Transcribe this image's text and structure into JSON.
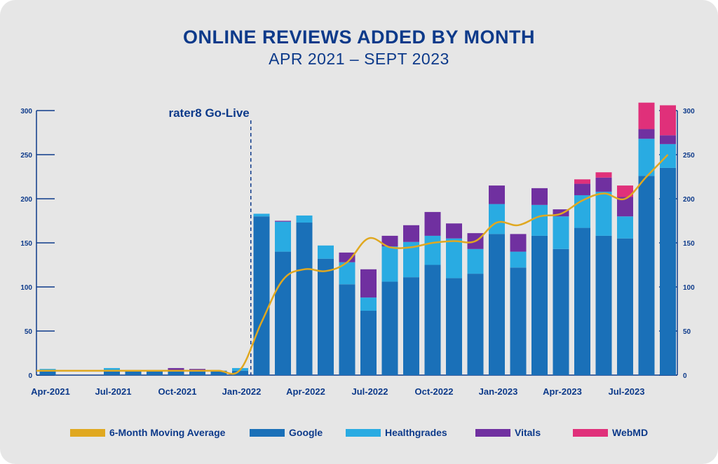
{
  "chart_data": {
    "type": "bar",
    "stacked": true,
    "title": "ONLINE REVIEWS ADDED BY MONTH",
    "subtitle": "APR 2021 – SEPT 2023",
    "annotation": "rater8 Go-Live",
    "annotation_category_index": 9.5,
    "categories": [
      "Apr-2021",
      "May-2021",
      "Jun-2021",
      "Jul-2021",
      "Aug-2021",
      "Sep-2021",
      "Oct-2021",
      "Nov-2021",
      "Dec-2021",
      "Jan-2022",
      "Feb-2022",
      "Mar-2022",
      "Apr-2022",
      "May-2022",
      "Jun-2022",
      "Jul-2022",
      "Aug-2022",
      "Sep-2022",
      "Oct-2022",
      "Nov-2022",
      "Dec-2022",
      "Jan-2023",
      "Feb-2023",
      "Mar-2023",
      "Apr-2023",
      "May-2023",
      "Jun-2023",
      "Jul-2023",
      "Aug-2023",
      "Sep-2023"
    ],
    "x_tick_labels": [
      {
        "index": 0,
        "label": "Apr-2021"
      },
      {
        "index": 3,
        "label": "Jul-2021"
      },
      {
        "index": 6,
        "label": "Oct-2021"
      },
      {
        "index": 9,
        "label": "Jan-2022"
      },
      {
        "index": 12,
        "label": "Apr-2022"
      },
      {
        "index": 15,
        "label": "Jul-2022"
      },
      {
        "index": 18,
        "label": "Oct-2022"
      },
      {
        "index": 21,
        "label": "Jan-2023"
      },
      {
        "index": 24,
        "label": "Apr-2023"
      },
      {
        "index": 27,
        "label": "Jul-2023"
      }
    ],
    "y_ticks": [
      0,
      50,
      100,
      150,
      200,
      250,
      300
    ],
    "ylim": [
      0,
      300
    ],
    "grid": false,
    "legend_position": "bottom",
    "series": [
      {
        "name": "Google",
        "color": "#1a70b8",
        "values": [
          5,
          0,
          0,
          5,
          5,
          5,
          5,
          5,
          5,
          5,
          180,
          140,
          173,
          132,
          103,
          73,
          106,
          111,
          125,
          110,
          115,
          160,
          122,
          158,
          143,
          167,
          158,
          155,
          226,
          235
        ]
      },
      {
        "name": "Healthgrades",
        "color": "#29abe2",
        "values": [
          2,
          0,
          0,
          3,
          0,
          0,
          0,
          0,
          0,
          3,
          3,
          34,
          8,
          15,
          25,
          15,
          40,
          40,
          33,
          45,
          28,
          34,
          18,
          35,
          37,
          37,
          50,
          25,
          42,
          27
        ]
      },
      {
        "name": "Vitals",
        "color": "#7030a0",
        "values": [
          0,
          0,
          0,
          0,
          0,
          0,
          3,
          2,
          0,
          0,
          0,
          1,
          0,
          0,
          11,
          32,
          12,
          19,
          27,
          17,
          18,
          21,
          20,
          19,
          8,
          13,
          16,
          22,
          11,
          10
        ]
      },
      {
        "name": "WebMD",
        "color": "#e0307a",
        "values": [
          0,
          0,
          0,
          0,
          0,
          0,
          0,
          0,
          0,
          0,
          0,
          0,
          0,
          0,
          0,
          0,
          0,
          0,
          0,
          0,
          0,
          0,
          0,
          0,
          0,
          5,
          6,
          13,
          30,
          34
        ]
      }
    ],
    "line": {
      "name": "6-Month Moving Average",
      "color": "#e0a820",
      "values": [
        5,
        5,
        5,
        5,
        5,
        5,
        5,
        5,
        5,
        6,
        60,
        108,
        120,
        118,
        128,
        155,
        145,
        145,
        150,
        152,
        152,
        173,
        170,
        180,
        183,
        198,
        206,
        200,
        225,
        250
      ]
    }
  },
  "legend": [
    {
      "label": "6-Month Moving Average",
      "color": "#e0a820",
      "kind": "line"
    },
    {
      "label": "Google",
      "color": "#1a70b8",
      "kind": "bar"
    },
    {
      "label": "Healthgrades",
      "color": "#29abe2",
      "kind": "bar"
    },
    {
      "label": "Vitals",
      "color": "#7030a0",
      "kind": "bar"
    },
    {
      "label": "WebMD",
      "color": "#e0307a",
      "kind": "bar"
    }
  ]
}
